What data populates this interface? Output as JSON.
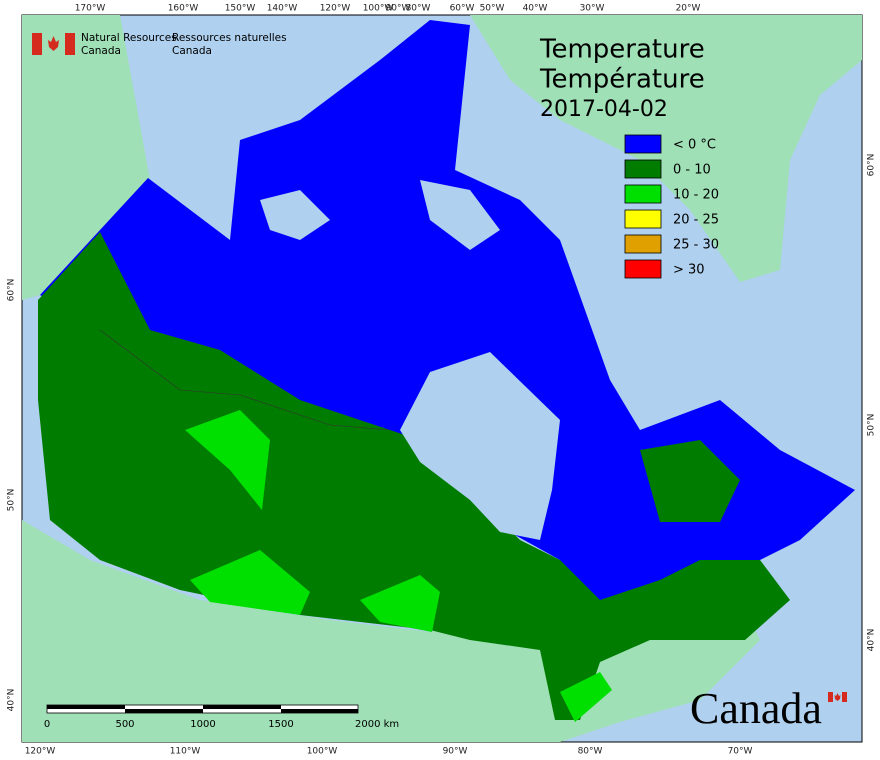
{
  "header": {
    "org_en": [
      "Natural Resources",
      "Canada"
    ],
    "org_fr": [
      "Ressources naturelles",
      "Canada"
    ]
  },
  "title": {
    "en": "Temperature",
    "fr": "Température",
    "date": "2017-04-02"
  },
  "legend": [
    {
      "label": "< 0 °C",
      "color": "#0000ff"
    },
    {
      "label": "0 - 10",
      "color": "#007c00"
    },
    {
      "label": "10 - 20",
      "color": "#00e000"
    },
    {
      "label": "20 - 25",
      "color": "#ffff00"
    },
    {
      "label": "25 - 30",
      "color": "#e0a000"
    },
    {
      "label": "> 30",
      "color": "#ff0000"
    }
  ],
  "graticule": {
    "top": [
      "170°W",
      "160°W",
      "150°W",
      "140°W",
      "120°W",
      "100°W",
      "90°W",
      "80°W",
      "60°W",
      "50°W",
      "40°W",
      "30°W",
      "20°W"
    ],
    "bottom": [
      "120°W",
      "110°W",
      "100°W",
      "90°W",
      "80°W",
      "70°W"
    ],
    "left": [
      "60°N",
      "50°N",
      "40°N"
    ],
    "right": [
      "60°N",
      "50°N",
      "40°N"
    ]
  },
  "scale_bar": {
    "labels": [
      "0",
      "500",
      "1000",
      "1500",
      "2000 km"
    ]
  },
  "wordmark": "Canada"
}
